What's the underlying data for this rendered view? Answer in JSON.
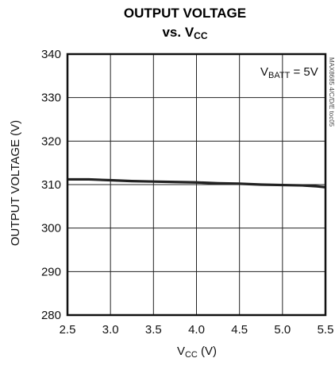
{
  "chart_data": {
    "type": "line",
    "title": {
      "line1": "OUTPUT VOLTAGE",
      "line2_prefix": "vs. V",
      "line2_sub": "CC"
    },
    "xlabel": {
      "main": "V",
      "sub": "CC",
      "unit": " (V)"
    },
    "ylabel": "OUTPUT VOLTAGE (V)",
    "xlim": [
      2.5,
      5.5
    ],
    "ylim": [
      280,
      340
    ],
    "x_ticks": [
      "2.5",
      "3.0",
      "3.5",
      "4.0",
      "4.5",
      "5.0",
      "5.5"
    ],
    "y_ticks": [
      "280",
      "290",
      "300",
      "310",
      "320",
      "330",
      "340"
    ],
    "grid": true,
    "annotation": {
      "main": "V",
      "sub": "BATT",
      "suffix": " = 5V"
    },
    "figure_id": "MAX8685 4/C/D/E toc05",
    "series": [
      {
        "x": [
          2.5,
          2.75,
          3.0,
          3.25,
          3.5,
          3.75,
          4.0,
          4.25,
          4.5,
          4.75,
          5.0,
          5.25,
          5.4,
          5.5
        ],
        "y": [
          311.2,
          311.2,
          311.0,
          310.8,
          310.7,
          310.6,
          310.5,
          310.3,
          310.2,
          310.0,
          309.9,
          309.8,
          309.6,
          309.4
        ]
      }
    ]
  }
}
